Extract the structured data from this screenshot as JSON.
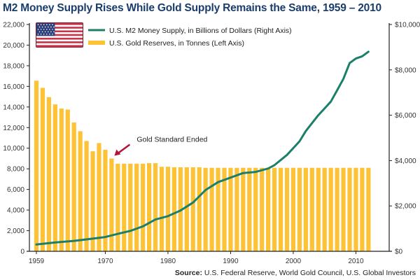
{
  "chart_data": {
    "type": "bar+line",
    "title": "M2 Money Supply Rises While Gold Supply Remains the Same, 1959 – 2010",
    "x_tick_labels": [
      "1959",
      "1970",
      "1980",
      "1990",
      "2000",
      "2010"
    ],
    "x_ticks": [
      1959,
      1970,
      1980,
      1990,
      2000,
      2010
    ],
    "x_range": [
      1959,
      2012
    ],
    "left_axis": {
      "label": "Tonnes",
      "ylim": [
        0,
        22000
      ],
      "ticks": [
        0,
        2000,
        4000,
        6000,
        8000,
        10000,
        12000,
        14000,
        16000,
        18000,
        20000,
        22000
      ],
      "tick_labels": [
        "0",
        "2,000",
        "4,000",
        "6,000",
        "8,000",
        "10,000",
        "12,000",
        "14,000",
        "16,000",
        "18,000",
        "20,000",
        "22,000"
      ]
    },
    "right_axis": {
      "label": "Billions of Dollars",
      "ylim": [
        0,
        10000
      ],
      "ticks": [
        0,
        2000,
        4000,
        6000,
        8000,
        10000
      ],
      "tick_labels": [
        "$0",
        "$2,000",
        "$4,000",
        "$6,000",
        "$8,000",
        "$10,000"
      ]
    },
    "grid": false,
    "legend_position": "top-left",
    "series": [
      {
        "name": "U.S. M2 Money Supply, in Billions of Dollars (Right Axis)",
        "type": "line",
        "axis": "right",
        "color": "#1b7f6a",
        "x": [
          1959,
          1962,
          1965,
          1968,
          1970,
          1972,
          1974,
          1976,
          1978,
          1980,
          1982,
          1984,
          1986,
          1988,
          1990,
          1992,
          1994,
          1996,
          1997,
          1999,
          2001,
          2002,
          2004,
          2005,
          2006,
          2007,
          2008,
          2009,
          2010,
          2011,
          2012
        ],
        "values": [
          300,
          390,
          460,
          560,
          630,
          770,
          900,
          1100,
          1400,
          1550,
          1800,
          2150,
          2700,
          3050,
          3250,
          3450,
          3500,
          3650,
          3800,
          4250,
          4850,
          5300,
          6000,
          6300,
          6600,
          7100,
          7600,
          8300,
          8500,
          8600,
          8800
        ]
      },
      {
        "name": "U.S. Gold Reserves, in Tonnes (Left Axis)",
        "type": "bar",
        "axis": "left",
        "color": "#fdc235",
        "x": [
          1959,
          1960,
          1961,
          1962,
          1963,
          1964,
          1965,
          1966,
          1967,
          1968,
          1969,
          1970,
          1971,
          1972,
          1973,
          1974,
          1975,
          1976,
          1977,
          1978,
          1979,
          1980,
          1981,
          1982,
          1983,
          1984,
          1985,
          1986,
          1987,
          1988,
          1989,
          1990,
          1991,
          1992,
          1993,
          1994,
          1995,
          1996,
          1997,
          1998,
          1999,
          2000,
          2001,
          2002,
          2003,
          2004,
          2005,
          2006,
          2007,
          2008,
          2009,
          2010,
          2011,
          2012
        ],
        "values": [
          16550,
          15850,
          14950,
          14250,
          13850,
          13750,
          12500,
          11650,
          10700,
          9700,
          10500,
          9850,
          9000,
          8500,
          8500,
          8500,
          8500,
          8500,
          8550,
          8550,
          8200,
          8200,
          8150,
          8150,
          8150,
          8150,
          8150,
          8100,
          8100,
          8100,
          8100,
          8100,
          8100,
          8100,
          8100,
          8100,
          8100,
          8100,
          8100,
          8100,
          8100,
          8100,
          8100,
          8100,
          8100,
          8100,
          8100,
          8100,
          8100,
          8100,
          8100,
          8100,
          8100,
          8100
        ]
      }
    ],
    "annotations": [
      {
        "text": "Gold Standard Ended",
        "x": 1971,
        "axis": "left",
        "y": 9000,
        "arrow_color": "#b3153a"
      }
    ]
  },
  "legend": {
    "line_label": "U.S. M2 Money Supply, in Billions of Dollars (Right Axis)",
    "bar_label": "U.S. Gold Reserves, in Tonnes (Left Axis)",
    "flag_icon": "us-flag"
  },
  "source": {
    "prefix": "Source:",
    "text": " U.S. Federal Reserve, World Gold Council, U.S. Global Investors"
  },
  "colors": {
    "title": "#1a3d6b",
    "bar": "#fdc235",
    "line": "#1b7f6a",
    "annotation_arrow": "#b3153a"
  }
}
